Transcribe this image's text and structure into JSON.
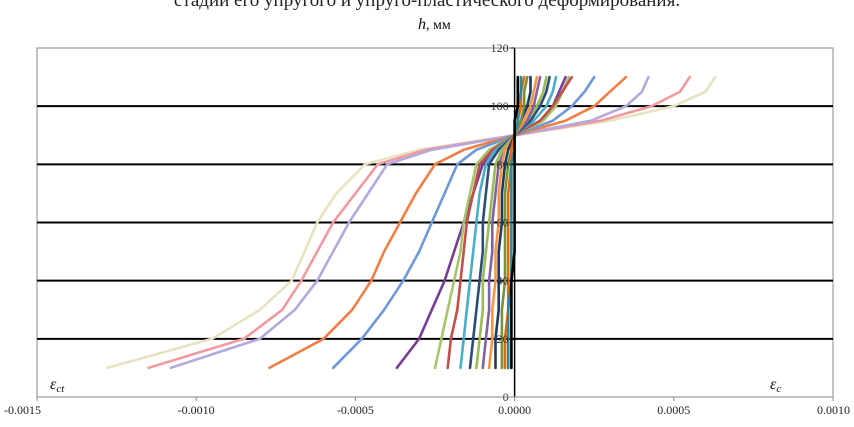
{
  "caption": "стадии его упругого и упруго-пластического деформирования.",
  "chart_data": {
    "type": "line",
    "title": "",
    "ylabel": "h, мм",
    "ylabel_var": "h",
    "ylabel_unit": ", мм",
    "xlabel_left": "ε_ct",
    "xlabel_left_main": "ε",
    "xlabel_left_sub": "ct",
    "xlabel_right": "ε_c",
    "xlabel_right_main": "ε",
    "xlabel_right_sub": "c",
    "xlim": [
      -0.0015,
      0.001
    ],
    "ylim": [
      0,
      120
    ],
    "x_ticks": [
      "-0.0015",
      "-0.0010",
      "-0.0005",
      "0.0000",
      "0.0005",
      "0.0010"
    ],
    "x_tick_values": [
      -0.0015,
      -0.001,
      -0.0005,
      0,
      0.0005,
      0.001
    ],
    "y_ticks": [
      "0",
      "20",
      "40",
      "60",
      "80",
      "100",
      "120"
    ],
    "y_tick_values": [
      0,
      20,
      40,
      60,
      80,
      100,
      120
    ],
    "gridlines_y": [
      20,
      40,
      60,
      80,
      100
    ],
    "grid": "horizontal",
    "h": [
      10,
      20,
      30,
      40,
      50,
      60,
      70,
      80,
      85,
      90,
      95,
      100,
      105,
      110
    ],
    "series": [
      {
        "color": "#e6e3c0",
        "values": [
          -0.00128,
          -0.00095,
          -0.0008,
          -0.0007,
          -0.00066,
          -0.00062,
          -0.00056,
          -0.00047,
          -0.0003,
          0.0,
          0.0003,
          0.0005,
          0.0006,
          0.00063
        ]
      },
      {
        "color": "#f29aa0",
        "values": [
          -0.00115,
          -0.00085,
          -0.00073,
          -0.00067,
          -0.00062,
          -0.00057,
          -0.0005,
          -0.00043,
          -0.00028,
          0.0,
          0.00027,
          0.00043,
          0.00052,
          0.00055
        ]
      },
      {
        "color": "#b5a8dc",
        "values": [
          -0.00108,
          -0.0008,
          -0.00069,
          -0.00062,
          -0.00057,
          -0.00052,
          -0.00046,
          -0.0004,
          -0.00026,
          0.0,
          0.00024,
          0.00035,
          0.0004,
          0.00042
        ]
      },
      {
        "color": "#f07e45",
        "values": [
          -0.00077,
          -0.0006,
          -0.00051,
          -0.00045,
          -0.00041,
          -0.00036,
          -0.00031,
          -0.00025,
          -0.00016,
          0.0,
          0.00016,
          0.00025,
          0.0003,
          0.00035
        ]
      },
      {
        "color": "#6f98d6",
        "values": [
          -0.00057,
          -0.00048,
          -0.00041,
          -0.00035,
          -0.0003,
          -0.00026,
          -0.00022,
          -0.00018,
          -0.00012,
          0.0,
          0.00012,
          0.00018,
          0.00022,
          0.00025
        ]
      },
      {
        "color": "#7b3d93",
        "values": [
          -0.00037,
          -0.0003,
          -0.00026,
          -0.00022,
          -0.00019,
          -0.00016,
          -0.00013,
          -0.0001,
          -7e-05,
          0.0,
          8e-05,
          0.00012,
          0.00014,
          0.00016
        ]
      },
      {
        "color": "#a7c46a",
        "values": [
          -0.00025,
          -0.00023,
          -0.00021,
          -0.00019,
          -0.00017,
          -0.00016,
          -0.00014,
          -0.00012,
          -8e-05,
          0.0,
          9e-05,
          0.00013,
          0.00015,
          0.00017
        ]
      },
      {
        "color": "#c0504d",
        "values": [
          -0.00021,
          -0.0002,
          -0.00018,
          -0.00017,
          -0.00016,
          -0.00015,
          -0.00013,
          -0.00011,
          -7e-05,
          0.0,
          8e-05,
          0.00012,
          0.00015,
          0.00018
        ]
      },
      {
        "color": "#4bacc6",
        "values": [
          -0.00017,
          -0.00016,
          -0.00015,
          -0.00014,
          -0.00013,
          -0.00012,
          -0.00011,
          -9e-05,
          -6e-05,
          0.0,
          6e-05,
          0.0001,
          0.00012,
          0.00013
        ]
      },
      {
        "color": "#2c4d75",
        "values": [
          -0.00014,
          -0.00013,
          -0.00012,
          -0.00011,
          -0.0001,
          -0.0001,
          -9e-05,
          -8e-05,
          -5e-05,
          0.0,
          5e-05,
          8e-05,
          0.0001,
          0.00011
        ]
      },
      {
        "color": "#9bbb59",
        "values": [
          -0.00012,
          -0.00011,
          -0.0001,
          -0.0001,
          -9e-05,
          -8e-05,
          -7e-05,
          -6e-05,
          -4e-05,
          0.0,
          4e-05,
          7e-05,
          9e-05,
          0.0001
        ]
      },
      {
        "color": "#8064a2",
        "values": [
          -0.0001,
          -9e-05,
          -8e-05,
          -8e-05,
          -7e-05,
          -7e-05,
          -6e-05,
          -5e-05,
          -3e-05,
          0.0,
          4e-05,
          6e-05,
          7e-05,
          8e-05
        ]
      },
      {
        "color": "#f79646",
        "values": [
          -8e-05,
          -7e-05,
          -7e-05,
          -6e-05,
          -6e-05,
          -5e-05,
          -5e-05,
          -4e-05,
          -3e-05,
          0.0,
          3e-05,
          5e-05,
          6e-05,
          7e-05
        ]
      },
      {
        "color": "#1f3864",
        "values": [
          -6e-05,
          -6e-05,
          -5e-05,
          -5e-05,
          -5e-05,
          -4e-05,
          -4e-05,
          -3e-05,
          -2e-05,
          0.0,
          2e-05,
          4e-05,
          5e-05,
          5e-05
        ]
      },
      {
        "color": "#76923c",
        "values": [
          -4e-05,
          -4e-05,
          -4e-05,
          -3e-05,
          -3e-05,
          -3e-05,
          -3e-05,
          -2e-05,
          -1e-05,
          0.0,
          2e-05,
          3e-05,
          3e-05,
          4e-05
        ]
      },
      {
        "color": "#e36c09",
        "values": [
          -3e-05,
          -3e-05,
          -2e-05,
          -2e-05,
          -2e-05,
          -2e-05,
          -2e-05,
          -1e-05,
          -1e-05,
          0.0,
          1e-05,
          2e-05,
          2e-05,
          3e-05
        ]
      },
      {
        "color": "#31859c",
        "values": [
          -2e-05,
          -2e-05,
          -2e-05,
          -1e-05,
          -1e-05,
          -1e-05,
          -1e-05,
          -1e-05,
          0.0,
          0.0,
          1e-05,
          1e-05,
          2e-05,
          2e-05
        ]
      },
      {
        "color": "#000000",
        "values": [
          -1e-05,
          -1e-05,
          -1e-05,
          -1e-05,
          0.0,
          0.0,
          0.0,
          0.0,
          0.0,
          0.0,
          0.0,
          1e-05,
          1e-05,
          1e-05
        ]
      }
    ]
  }
}
